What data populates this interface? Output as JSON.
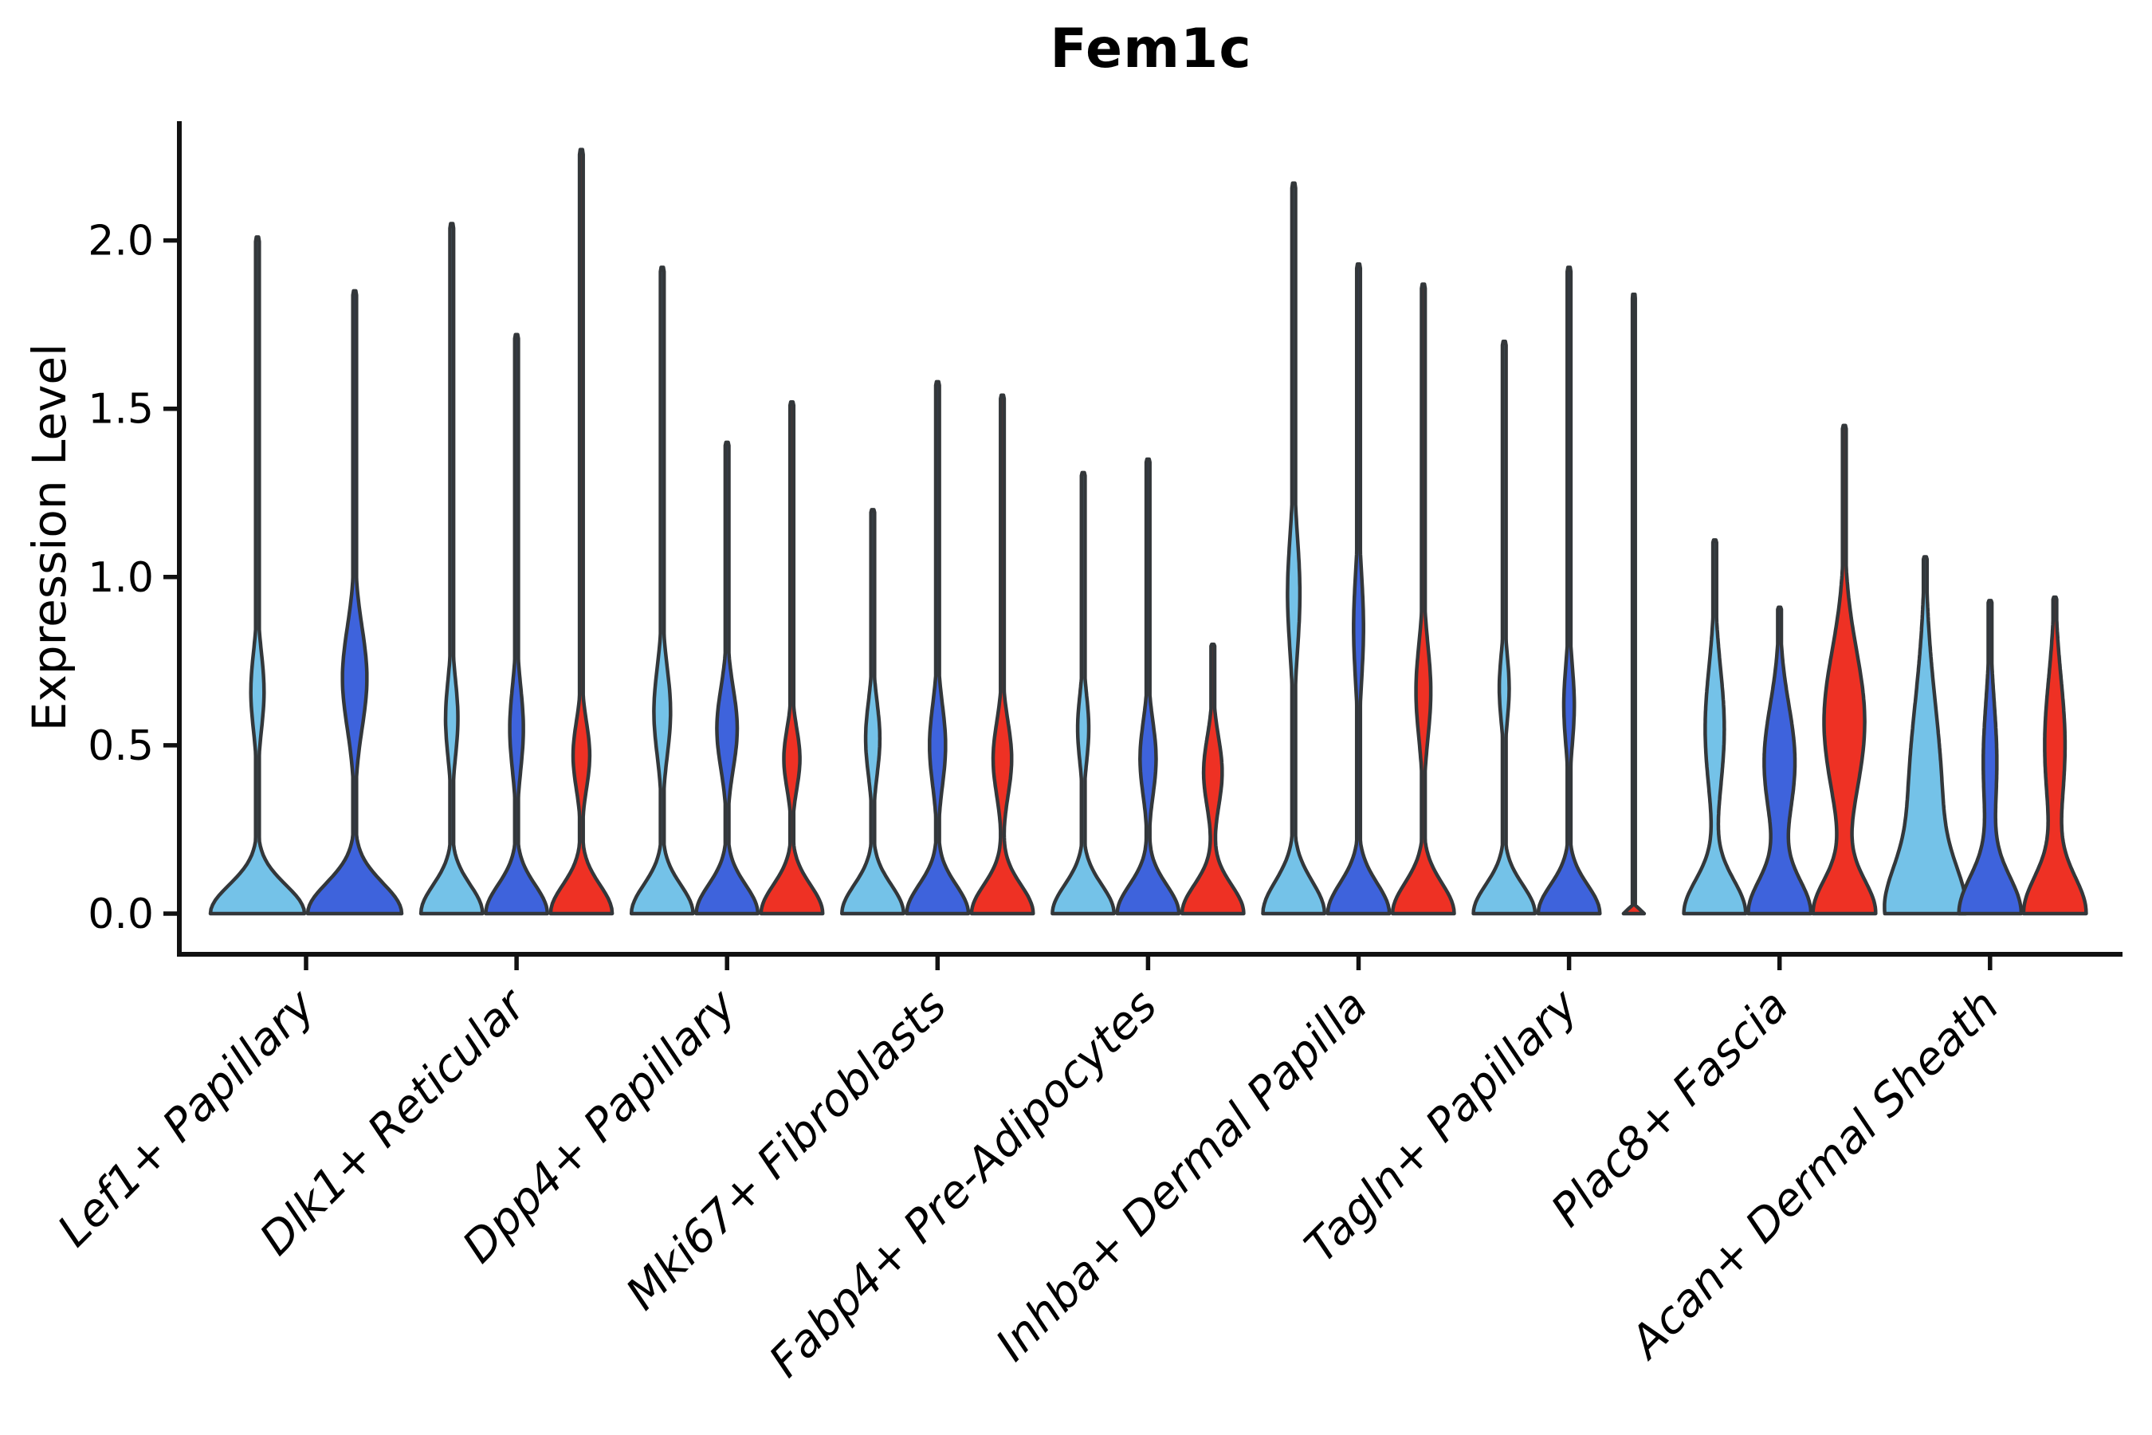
{
  "title": "Fem1c",
  "ylabel": "Expression Level",
  "colors": {
    "light_blue": "#74C2E8",
    "dark_blue": "#3E63DC",
    "red": "#EE3124",
    "violin_outline": "#33373a",
    "axis": "#111111",
    "text": "#000000",
    "background": "#ffffff"
  },
  "chart_data": {
    "type": "violin",
    "title": "Fem1c",
    "xlabel": "",
    "ylabel": "Expression Level",
    "yticks": [
      0.0,
      0.5,
      1.0,
      1.5,
      2.0
    ],
    "ylim": [
      -0.12,
      2.47
    ],
    "grid": false,
    "legend_position": "none",
    "hues": [
      "light_blue",
      "dark_blue",
      "red"
    ],
    "categories": [
      "Lef1+ Papillary",
      "Dlk1+ Reticular",
      "Dpp4+ Papillary",
      "Mki67+ Fibroblasts",
      "Fabp4+ Pre-Adipocytes",
      "Inhba+ Dermal Papilla",
      "Tagln+ Papillary",
      "Plac8+ Fascia",
      "Acan+ Dermal Sheath"
    ],
    "groups": [
      {
        "category": "Lef1+ Papillary",
        "violins": [
          {
            "hue": "light_blue",
            "max": 2.01,
            "lobe_center": 0.66,
            "lobe_sigma": 0.115,
            "lobe_amp": 0.14,
            "base_sigma": 0.085,
            "kind": "violin"
          },
          {
            "hue": "dark_blue",
            "max": 1.85,
            "lobe_center": 0.7,
            "lobe_sigma": 0.15,
            "lobe_amp": 0.26,
            "base_sigma": 0.09,
            "kind": "violin"
          }
        ]
      },
      {
        "category": "Dlk1+ Reticular",
        "violins": [
          {
            "hue": "light_blue",
            "max": 2.05,
            "lobe_center": 0.58,
            "lobe_sigma": 0.115,
            "lobe_amp": 0.2,
            "base_sigma": 0.085,
            "kind": "violin"
          },
          {
            "hue": "dark_blue",
            "max": 1.72,
            "lobe_center": 0.55,
            "lobe_sigma": 0.125,
            "lobe_amp": 0.22,
            "base_sigma": 0.085,
            "kind": "violin"
          },
          {
            "hue": "red",
            "max": 2.27,
            "lobe_center": 0.47,
            "lobe_sigma": 0.1,
            "lobe_amp": 0.27,
            "base_sigma": 0.085,
            "kind": "violin"
          }
        ]
      },
      {
        "category": "Dpp4+ Papillary",
        "violins": [
          {
            "hue": "light_blue",
            "max": 1.92,
            "lobe_center": 0.6,
            "lobe_sigma": 0.13,
            "lobe_amp": 0.27,
            "base_sigma": 0.085,
            "kind": "violin"
          },
          {
            "hue": "dark_blue",
            "max": 1.4,
            "lobe_center": 0.55,
            "lobe_sigma": 0.12,
            "lobe_amp": 0.33,
            "base_sigma": 0.085,
            "kind": "violin"
          },
          {
            "hue": "red",
            "max": 1.52,
            "lobe_center": 0.46,
            "lobe_sigma": 0.09,
            "lobe_amp": 0.26,
            "base_sigma": 0.085,
            "kind": "violin"
          }
        ]
      },
      {
        "category": "Mki67+ Fibroblasts",
        "violins": [
          {
            "hue": "light_blue",
            "max": 1.2,
            "lobe_center": 0.52,
            "lobe_sigma": 0.11,
            "lobe_amp": 0.23,
            "base_sigma": 0.085,
            "kind": "violin"
          },
          {
            "hue": "dark_blue",
            "max": 1.58,
            "lobe_center": 0.5,
            "lobe_sigma": 0.12,
            "lobe_amp": 0.26,
            "base_sigma": 0.085,
            "kind": "violin"
          },
          {
            "hue": "red",
            "max": 1.54,
            "lobe_center": 0.46,
            "lobe_sigma": 0.11,
            "lobe_amp": 0.3,
            "base_sigma": 0.085,
            "kind": "violin"
          }
        ]
      },
      {
        "category": "Fabp4+ Pre-Adipocytes",
        "violins": [
          {
            "hue": "light_blue",
            "max": 1.31,
            "lobe_center": 0.55,
            "lobe_sigma": 0.1,
            "lobe_amp": 0.18,
            "base_sigma": 0.085,
            "kind": "violin"
          },
          {
            "hue": "dark_blue",
            "max": 1.35,
            "lobe_center": 0.46,
            "lobe_sigma": 0.11,
            "lobe_amp": 0.26,
            "base_sigma": 0.085,
            "kind": "violin"
          },
          {
            "hue": "red",
            "max": 0.8,
            "lobe_center": 0.42,
            "lobe_sigma": 0.105,
            "lobe_amp": 0.3,
            "base_sigma": 0.085,
            "kind": "violin"
          }
        ]
      },
      {
        "category": "Inhba+ Dermal Papilla",
        "violins": [
          {
            "hue": "light_blue",
            "max": 2.17,
            "lobe_center": 0.95,
            "lobe_sigma": 0.17,
            "lobe_amp": 0.2,
            "base_sigma": 0.095,
            "kind": "violin"
          },
          {
            "hue": "dark_blue",
            "max": 1.93,
            "lobe_center": 0.85,
            "lobe_sigma": 0.16,
            "lobe_amp": 0.16,
            "base_sigma": 0.09,
            "kind": "violin"
          },
          {
            "hue": "red",
            "max": 1.87,
            "lobe_center": 0.66,
            "lobe_sigma": 0.14,
            "lobe_amp": 0.24,
            "base_sigma": 0.09,
            "kind": "violin"
          }
        ]
      },
      {
        "category": "Tagln+ Papillary",
        "violins": [
          {
            "hue": "light_blue",
            "max": 1.7,
            "lobe_center": 0.67,
            "lobe_sigma": 0.1,
            "lobe_amp": 0.16,
            "base_sigma": 0.085,
            "kind": "violin"
          },
          {
            "hue": "dark_blue",
            "max": 1.92,
            "lobe_center": 0.62,
            "lobe_sigma": 0.12,
            "lobe_amp": 0.17,
            "base_sigma": 0.085,
            "kind": "violin"
          },
          {
            "hue": "red",
            "max": 1.84,
            "lobe_center": 0.0,
            "lobe_sigma": 0.1,
            "lobe_amp": 0.0,
            "base_sigma": 0.012,
            "kind": "stick"
          }
        ]
      },
      {
        "category": "Plac8+ Fascia",
        "violins": [
          {
            "hue": "light_blue",
            "max": 1.11,
            "lobe_center": 0.55,
            "lobe_sigma": 0.18,
            "lobe_amp": 0.31,
            "base_sigma": 0.1,
            "kind": "violin"
          },
          {
            "hue": "dark_blue",
            "max": 0.91,
            "lobe_center": 0.45,
            "lobe_sigma": 0.17,
            "lobe_amp": 0.5,
            "base_sigma": 0.1,
            "kind": "violin"
          },
          {
            "hue": "red",
            "max": 1.45,
            "lobe_center": 0.57,
            "lobe_sigma": 0.21,
            "lobe_amp": 0.66,
            "base_sigma": 0.1,
            "kind": "violin"
          }
        ]
      },
      {
        "category": "Acan+ Dermal Sheath",
        "violins": [
          {
            "hue": "light_blue",
            "max": 1.06,
            "lobe_center": 0.32,
            "lobe_sigma": 0.3,
            "lobe_amp": 0.55,
            "base_sigma": 0.13,
            "kind": "violin"
          },
          {
            "hue": "dark_blue",
            "max": 0.93,
            "lobe_center": 0.45,
            "lobe_sigma": 0.18,
            "lobe_amp": 0.22,
            "base_sigma": 0.11,
            "kind": "violin"
          },
          {
            "hue": "red",
            "max": 0.94,
            "lobe_center": 0.5,
            "lobe_sigma": 0.2,
            "lobe_amp": 0.33,
            "base_sigma": 0.11,
            "kind": "violin"
          }
        ]
      }
    ]
  }
}
